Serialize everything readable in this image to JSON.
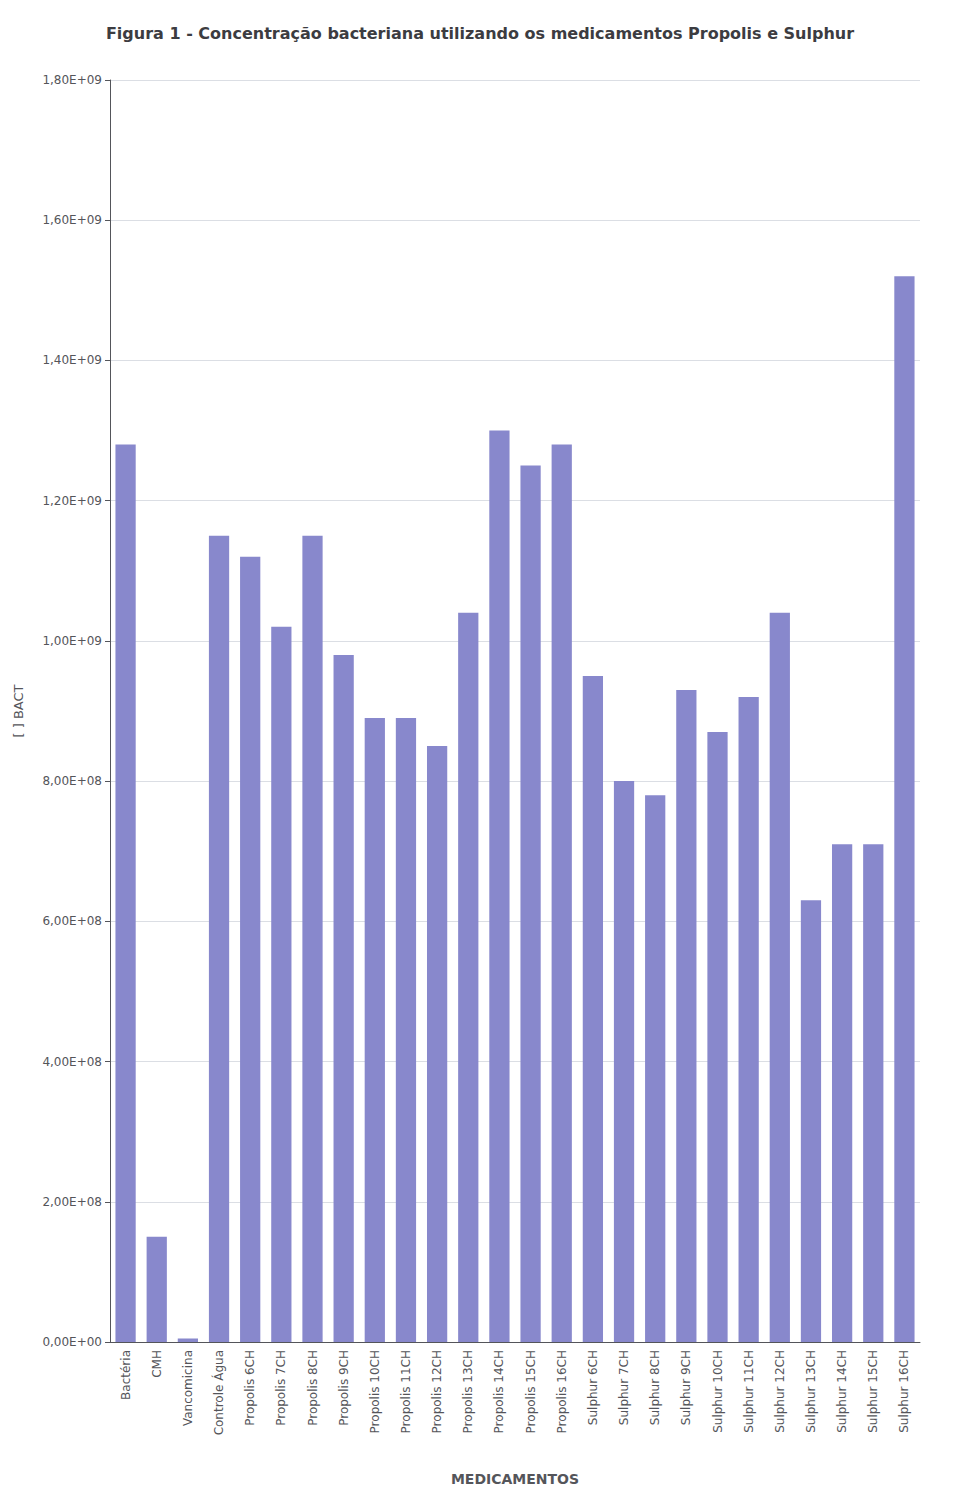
{
  "chart_data": {
    "type": "bar",
    "title": "Figura 1 - Concentração bacteriana utilizando os medicamentos Propolis e Sulphur",
    "xlabel": "MEDICAMENTOS",
    "ylabel": "[ ] BACT",
    "categories": [
      "Bactéria",
      "CMH",
      "Vancomicina",
      "Controle Água",
      "Propolis 6CH",
      "Propolis 7CH",
      "Propolis 8CH",
      "Propolis 9CH",
      "Propolis 10CH",
      "Propolis 11CH",
      "Propolis 12CH",
      "Propolis 13CH",
      "Propolis 14CH",
      "Propolis 15CH",
      "Propolis 16CH",
      "Sulphur 6CH",
      "Sulphur 7CH",
      "Sulphur 8CH",
      "Sulphur 9CH",
      "Sulphur 10CH",
      "Sulphur 11CH",
      "Sulphur 12CH",
      "Sulphur 13CH",
      "Sulphur 14CH",
      "Sulphur 15CH",
      "Sulphur 16CH"
    ],
    "values": [
      1280000000.0,
      150000000.0,
      5000000.0,
      1150000000.0,
      1120000000.0,
      1020000000.0,
      1150000000.0,
      980000000.0,
      890000000.0,
      890000000.0,
      850000000.0,
      1040000000.0,
      1300000000.0,
      1250000000.0,
      1280000000.0,
      950000000.0,
      800000000.0,
      780000000.0,
      930000000.0,
      870000000.0,
      920000000.0,
      1040000000.0,
      630000000.0,
      710000000.0,
      710000000.0,
      1520000000.0
    ],
    "color": "#8888cc",
    "ylim": [
      0,
      1800000000.0
    ],
    "yticks": [
      {
        "value": 0,
        "label": "0,00E+00"
      },
      {
        "value": 200000000.0,
        "label": "2,00E+08"
      },
      {
        "value": 400000000.0,
        "label": "4,00E+08"
      },
      {
        "value": 600000000.0,
        "label": "6,00E+08"
      },
      {
        "value": 800000000.0,
        "label": "8,00E+08"
      },
      {
        "value": 1000000000.0,
        "label": "1,00E+09"
      },
      {
        "value": 1200000000.0,
        "label": "1,20E+09"
      },
      {
        "value": 1400000000.0,
        "label": "1,40E+09"
      },
      {
        "value": 1600000000.0,
        "label": "1,60E+09"
      },
      {
        "value": 1800000000.0,
        "label": "1,80E+09"
      }
    ],
    "grid": true
  }
}
